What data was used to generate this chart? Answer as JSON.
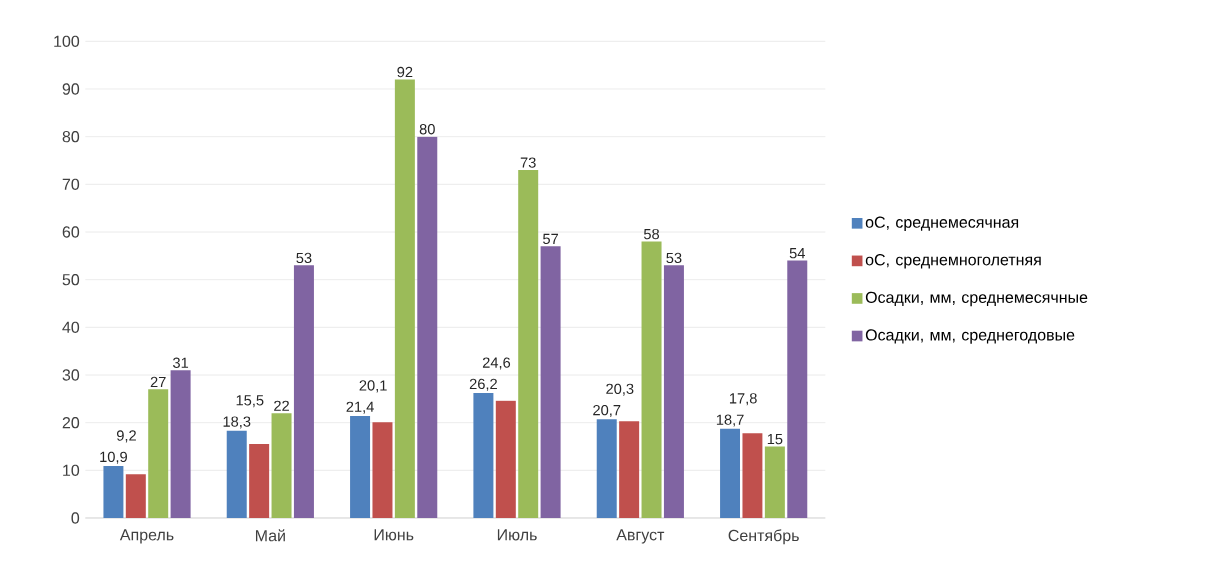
{
  "chart_data": {
    "type": "bar",
    "categories": [
      "Апрель",
      "Май",
      "Июнь",
      "Июль",
      "Август",
      "Сентябрь"
    ],
    "series": [
      {
        "name": "оС, среднемесячная",
        "color": "#4f81bd",
        "values": [
          10.9,
          18.3,
          21.4,
          26.2,
          20.7,
          18.7
        ],
        "value_labels": [
          "10,9",
          "18,3",
          "21,4",
          "26,2",
          "20,7",
          "18,7"
        ]
      },
      {
        "name": "оС, среднемноголетняя",
        "color": "#c0504d",
        "values": [
          9.2,
          15.5,
          20.1,
          24.6,
          20.3,
          17.8
        ],
        "value_labels": [
          "9,2",
          "15,5",
          "20,1",
          "24,6",
          "20,3",
          "17,8"
        ]
      },
      {
        "name": "Осадки, мм, среднемесячные",
        "color": "#9bbb59",
        "values": [
          27,
          22,
          92,
          73,
          58,
          15
        ],
        "value_labels": [
          "27",
          "22",
          "92",
          "73",
          "58",
          "15"
        ]
      },
      {
        "name": "Осадки, мм, среднегодовые",
        "color": "#8064a2",
        "values": [
          31,
          53,
          80,
          57,
          53,
          54
        ],
        "value_labels": [
          "31",
          "53",
          "80",
          "57",
          "53",
          "54"
        ]
      }
    ],
    "ylim": [
      0,
      100
    ],
    "yticks": [
      0,
      10,
      20,
      30,
      40,
      50,
      60,
      70,
      80,
      90,
      100
    ],
    "grid": "y",
    "legend": "right"
  }
}
